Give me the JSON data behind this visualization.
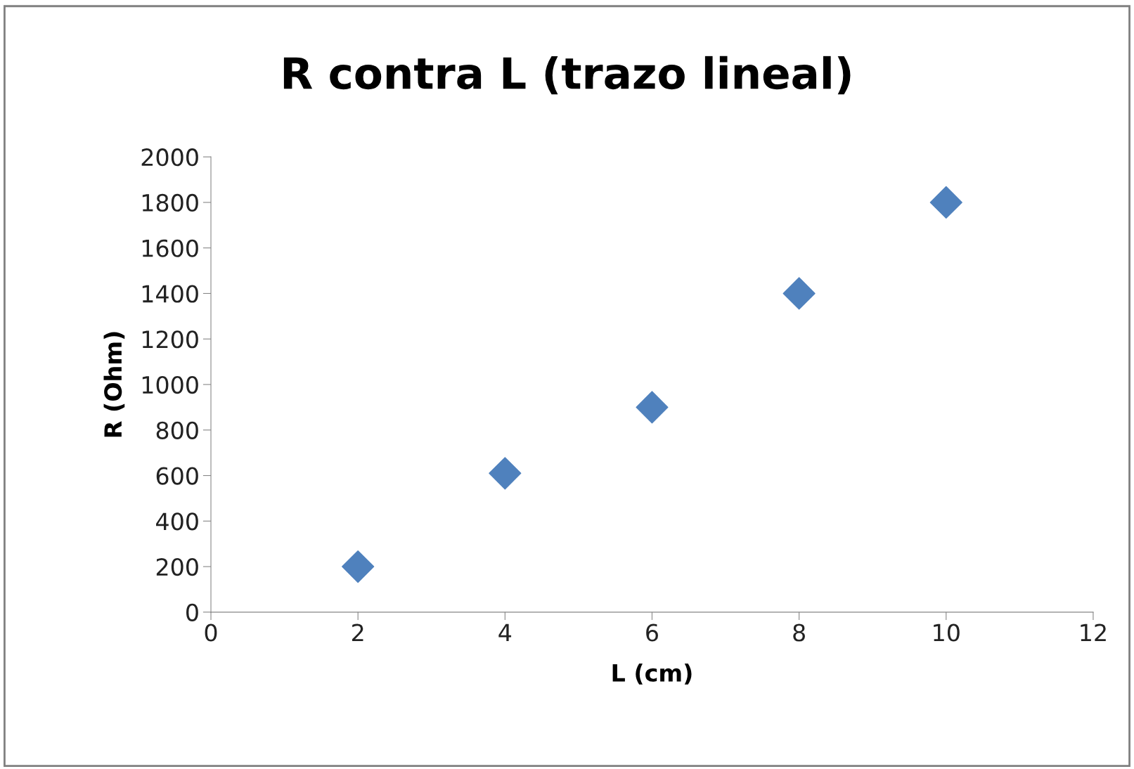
{
  "chart_data": {
    "type": "scatter",
    "title": "R contra L (trazo lineal)",
    "xlabel": "L (cm)",
    "ylabel": "R (Ohm)",
    "x": [
      2,
      4,
      6,
      8,
      10
    ],
    "series": [
      {
        "color": "#4f81bd",
        "values": [
          200,
          610,
          900,
          1400,
          1800
        ]
      }
    ],
    "xlim": [
      0,
      12
    ],
    "xticks": [
      0,
      2,
      4,
      6,
      8,
      10,
      12
    ],
    "ylim": [
      0,
      2000
    ],
    "yticks": [
      0,
      200,
      400,
      600,
      800,
      1000,
      1200,
      1400,
      1600,
      1800,
      2000
    ],
    "grid": false,
    "legend": false,
    "marker": "diamond"
  }
}
